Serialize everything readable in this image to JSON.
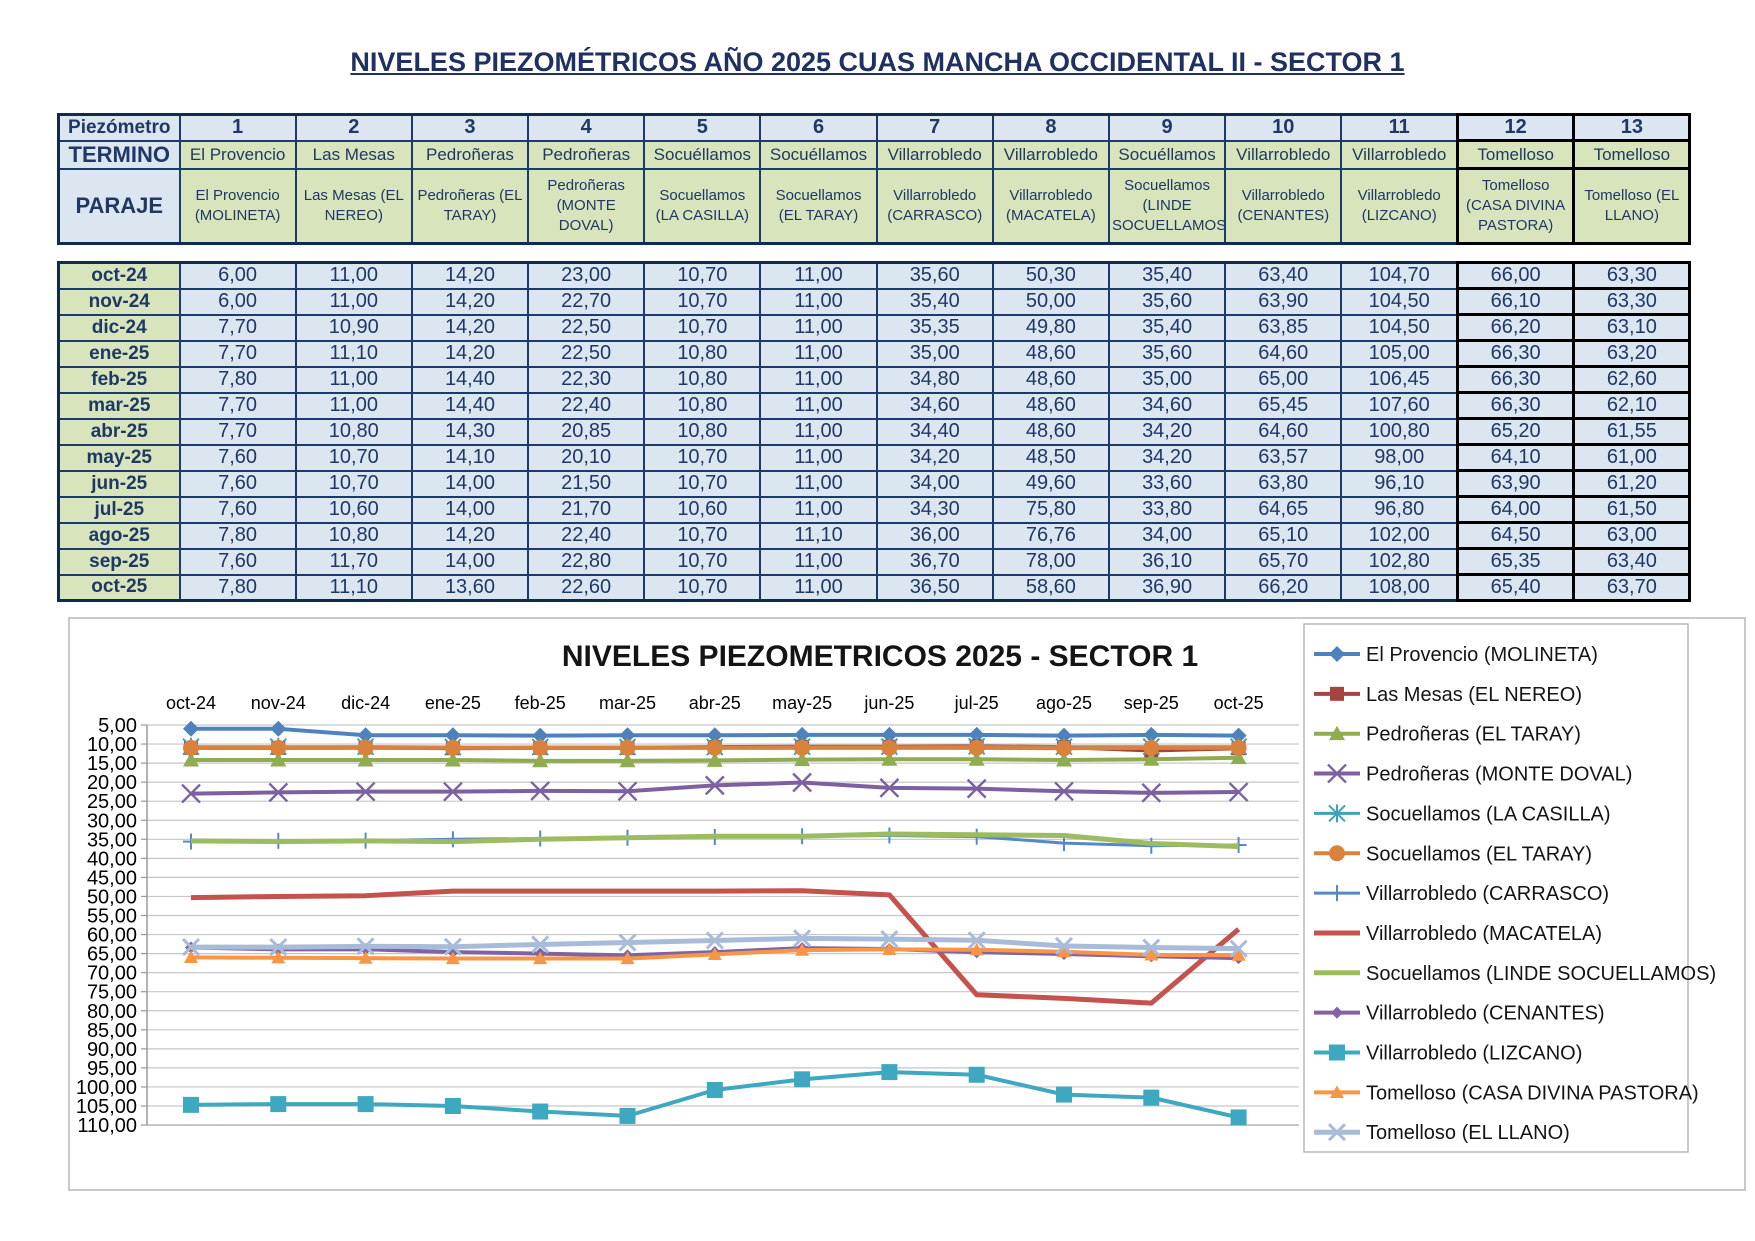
{
  "page_title": "NIVELES PIEZOMÉTRICOS AÑO 2025 CUAS MANCHA OCCIDENTAL II - SECTOR 1",
  "colors": {
    "header_blue": "#DCE6F1",
    "cell_green": "#D7E4BC",
    "border_navy": "#1C3A6B",
    "text_navy": "#1F3864",
    "gridline_gray": "#C6C6C6"
  },
  "table": {
    "corner_label": "Piezómetro",
    "termino_label": "TERMINO",
    "paraje_label": "PARAJE",
    "piezometros": [
      "1",
      "2",
      "3",
      "4",
      "5",
      "6",
      "7",
      "8",
      "9",
      "10",
      "11",
      "12",
      "13"
    ],
    "terminos": [
      "El Provencio",
      "Las Mesas",
      "Pedroñeras",
      "Pedroñeras",
      "Socuéllamos",
      "Socuéllamos",
      "Villarrobledo",
      "Villarrobledo",
      "Socuéllamos",
      "Villarrobledo",
      "Villarrobledo",
      "Tomelloso",
      "Tomelloso"
    ],
    "parajes": [
      "El Provencio (MOLINETA)",
      "Las Mesas (EL NEREO)",
      "Pedroñeras (EL TARAY)",
      "Pedroñeras (MONTE DOVAL)",
      "Socuellamos  (LA CASILLA)",
      "Socuellamos (EL TARAY)",
      "Villarrobledo (CARRASCO)",
      "Villarrobledo (MACATELA)",
      "Socuellamos (LINDE SOCUELLAMOS)",
      "Villarrobledo (CENANTES)",
      "Villarrobledo (LIZCANO)",
      "Tomelloso (CASA DIVINA PASTORA)",
      "Tomelloso (EL LLANO)"
    ],
    "months": [
      "oct-24",
      "nov-24",
      "dic-24",
      "ene-25",
      "feb-25",
      "mar-25",
      "abr-25",
      "may-25",
      "jun-25",
      "jul-25",
      "ago-25",
      "sep-25",
      "oct-25"
    ],
    "rows": [
      [
        "6,00",
        "11,00",
        "14,20",
        "23,00",
        "10,70",
        "11,00",
        "35,60",
        "50,30",
        "35,40",
        "63,40",
        "104,70",
        "66,00",
        "63,30"
      ],
      [
        "6,00",
        "11,00",
        "14,20",
        "22,70",
        "10,70",
        "11,00",
        "35,40",
        "50,00",
        "35,60",
        "63,90",
        "104,50",
        "66,10",
        "63,30"
      ],
      [
        "7,70",
        "10,90",
        "14,20",
        "22,50",
        "10,70",
        "11,00",
        "35,35",
        "49,80",
        "35,40",
        "63,85",
        "104,50",
        "66,20",
        "63,10"
      ],
      [
        "7,70",
        "11,10",
        "14,20",
        "22,50",
        "10,80",
        "11,00",
        "35,00",
        "48,60",
        "35,60",
        "64,60",
        "105,00",
        "66,30",
        "63,20"
      ],
      [
        "7,80",
        "11,00",
        "14,40",
        "22,30",
        "10,80",
        "11,00",
        "34,80",
        "48,60",
        "35,00",
        "65,00",
        "106,45",
        "66,30",
        "62,60"
      ],
      [
        "7,70",
        "11,00",
        "14,40",
        "22,40",
        "10,80",
        "11,00",
        "34,60",
        "48,60",
        "34,60",
        "65,45",
        "107,60",
        "66,30",
        "62,10"
      ],
      [
        "7,70",
        "10,80",
        "14,30",
        "20,85",
        "10,80",
        "11,00",
        "34,40",
        "48,60",
        "34,20",
        "64,60",
        "100,80",
        "65,20",
        "61,55"
      ],
      [
        "7,60",
        "10,70",
        "14,10",
        "20,10",
        "10,70",
        "11,00",
        "34,20",
        "48,50",
        "34,20",
        "63,57",
        "98,00",
        "64,10",
        "61,00"
      ],
      [
        "7,60",
        "10,70",
        "14,00",
        "21,50",
        "10,70",
        "11,00",
        "34,00",
        "49,60",
        "33,60",
        "63,80",
        "96,10",
        "63,90",
        "61,20"
      ],
      [
        "7,60",
        "10,60",
        "14,00",
        "21,70",
        "10,60",
        "11,00",
        "34,30",
        "75,80",
        "33,80",
        "64,65",
        "96,80",
        "64,00",
        "61,50"
      ],
      [
        "7,80",
        "10,80",
        "14,20",
        "22,40",
        "10,70",
        "11,10",
        "36,00",
        "76,76",
        "34,00",
        "65,10",
        "102,00",
        "64,50",
        "63,00"
      ],
      [
        "7,60",
        "11,70",
        "14,00",
        "22,80",
        "10,70",
        "11,00",
        "36,70",
        "78,00",
        "36,10",
        "65,70",
        "102,80",
        "65,35",
        "63,40"
      ],
      [
        "7,80",
        "11,10",
        "13,60",
        "22,60",
        "10,70",
        "11,00",
        "36,50",
        "58,60",
        "36,90",
        "66,20",
        "108,00",
        "65,40",
        "63,70"
      ]
    ]
  },
  "chart_data": {
    "type": "line",
    "title": "NIVELES PIEZOMETRICOS 2025 - SECTOR 1",
    "x": [
      "oct-24",
      "nov-24",
      "dic-24",
      "ene-25",
      "feb-25",
      "mar-25",
      "abr-25",
      "may-25",
      "jun-25",
      "jul-25",
      "ago-25",
      "sep-25",
      "oct-25"
    ],
    "xlabel": "",
    "ylabel": "",
    "y_axis": {
      "min": 5,
      "max": 110,
      "step": 5,
      "inverted": true,
      "decimal_separator": ",",
      "format": "0,00"
    },
    "grid": true,
    "legend_position": "right",
    "series": [
      {
        "name": "El Provencio (MOLINETA)",
        "color": "#4F81BD",
        "marker": "diamond",
        "msize": 8,
        "width": 4,
        "values": [
          6.0,
          6.0,
          7.7,
          7.7,
          7.8,
          7.7,
          7.7,
          7.6,
          7.6,
          7.6,
          7.8,
          7.6,
          7.8
        ]
      },
      {
        "name": "Las Mesas (EL NEREO)",
        "color": "#A5433F",
        "marker": "square",
        "msize": 7,
        "width": 4,
        "values": [
          11.0,
          11.0,
          10.9,
          11.1,
          11.0,
          11.0,
          10.8,
          10.7,
          10.7,
          10.6,
          10.8,
          11.7,
          11.1
        ]
      },
      {
        "name": "Pedroñeras (EL TARAY)",
        "color": "#8FAC51",
        "marker": "triangle",
        "msize": 8,
        "width": 4,
        "values": [
          14.2,
          14.2,
          14.2,
          14.2,
          14.4,
          14.4,
          14.3,
          14.1,
          14.0,
          14.0,
          14.2,
          14.0,
          13.6
        ]
      },
      {
        "name": "Pedroñeras (MONTE DOVAL)",
        "color": "#7D60A0",
        "marker": "x",
        "msize": 9,
        "width": 4,
        "values": [
          23.0,
          22.7,
          22.5,
          22.5,
          22.3,
          22.4,
          20.85,
          20.1,
          21.5,
          21.7,
          22.4,
          22.8,
          22.6
        ]
      },
      {
        "name": "Socuellamos  (LA CASILLA)",
        "color": "#3FA2B8",
        "marker": "asterisk",
        "msize": 8,
        "width": 3,
        "values": [
          10.7,
          10.7,
          10.7,
          10.8,
          10.8,
          10.8,
          10.8,
          10.7,
          10.7,
          10.6,
          10.7,
          10.7,
          10.7
        ]
      },
      {
        "name": "Socuellamos (EL TARAY)",
        "color": "#D9823E",
        "marker": "circle",
        "msize": 8,
        "width": 4,
        "values": [
          11.0,
          11.0,
          11.0,
          11.0,
          11.0,
          11.0,
          11.0,
          11.0,
          11.0,
          11.0,
          11.1,
          11.0,
          11.0
        ]
      },
      {
        "name": "Villarrobledo (CARRASCO)",
        "color": "#5488C8",
        "marker": "plus",
        "msize": 8,
        "width": 3,
        "values": [
          35.6,
          35.4,
          35.35,
          35.0,
          34.8,
          34.6,
          34.4,
          34.2,
          34.0,
          34.3,
          36.0,
          36.7,
          36.5
        ]
      },
      {
        "name": "Villarrobledo (MACATELA)",
        "color": "#C4524D",
        "marker": "none",
        "msize": 0,
        "width": 5,
        "values": [
          50.3,
          50.0,
          49.8,
          48.6,
          48.6,
          48.6,
          48.6,
          48.5,
          49.6,
          75.8,
          76.76,
          78.0,
          58.6
        ]
      },
      {
        "name": "Socuellamos (LINDE SOCUELLAMOS)",
        "color": "#9DBB61",
        "marker": "none",
        "msize": 0,
        "width": 5,
        "values": [
          35.4,
          35.6,
          35.4,
          35.6,
          35.0,
          34.6,
          34.2,
          34.2,
          33.6,
          33.8,
          34.0,
          36.1,
          36.9
        ]
      },
      {
        "name": "Villarrobledo  (CENANTES)",
        "color": "#7E64A5",
        "marker": "diamond",
        "msize": 6,
        "width": 4,
        "values": [
          63.4,
          63.9,
          63.85,
          64.6,
          65.0,
          65.45,
          64.6,
          63.57,
          63.8,
          64.65,
          65.1,
          65.7,
          66.2
        ]
      },
      {
        "name": "Villarrobledo (LIZCANO)",
        "color": "#3DA8BF",
        "marker": "square",
        "msize": 8,
        "width": 4,
        "values": [
          104.7,
          104.5,
          104.5,
          105.0,
          106.45,
          107.6,
          100.8,
          98.0,
          96.1,
          96.8,
          102.0,
          102.8,
          108.0
        ]
      },
      {
        "name": "Tomelloso (CASA DIVINA PASTORA)",
        "color": "#F79646",
        "marker": "triangle",
        "msize": 7,
        "width": 4,
        "values": [
          66.0,
          66.1,
          66.2,
          66.3,
          66.3,
          66.3,
          65.2,
          64.1,
          63.9,
          64.0,
          64.5,
          65.35,
          65.4
        ]
      },
      {
        "name": "Tomelloso (EL LLANO)",
        "color": "#A8BCD9",
        "marker": "x",
        "msize": 8,
        "width": 5,
        "values": [
          63.3,
          63.3,
          63.1,
          63.2,
          62.6,
          62.1,
          61.55,
          61.0,
          61.2,
          61.5,
          63.0,
          63.4,
          63.7
        ]
      }
    ]
  }
}
